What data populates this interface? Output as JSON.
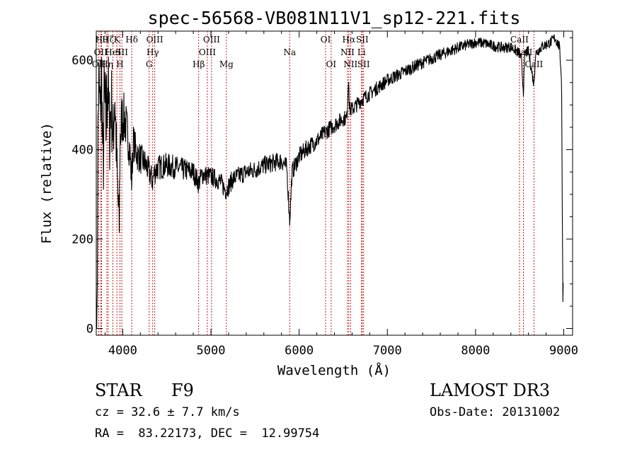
{
  "chart_data": {
    "type": "line",
    "title": "spec-56568-VB081N11V1_sp12-221.fits",
    "xlabel": "Wavelength (Å)",
    "ylabel": "Flux (relative)",
    "xlim": [
      3700,
      9100
    ],
    "ylim": [
      -15,
      665
    ],
    "grid": false,
    "x_ticks": [
      4000,
      5000,
      6000,
      7000,
      8000,
      9000
    ],
    "y_ticks": [
      0,
      200,
      400,
      600
    ],
    "x_tick_labels": [
      "4000",
      "5000",
      "6000",
      "7000",
      "8000",
      "9000"
    ],
    "y_tick_labels": [
      "0",
      "200",
      "400",
      "600"
    ],
    "series": [
      {
        "line_color": "#000000",
        "noise": [
          [
            3700,
            60
          ],
          [
            3800,
            120
          ],
          [
            3900,
            90
          ],
          [
            4000,
            60
          ],
          [
            4100,
            40
          ],
          [
            4300,
            30
          ],
          [
            5000,
            22
          ],
          [
            6000,
            20
          ],
          [
            7000,
            15
          ],
          [
            8000,
            12
          ],
          [
            9000,
            12
          ]
        ],
        "points": [
          [
            3705,
            0
          ],
          [
            3712,
            120
          ],
          [
            3718,
            430
          ],
          [
            3730,
            560
          ],
          [
            3745,
            470
          ],
          [
            3760,
            580
          ],
          [
            3778,
            330
          ],
          [
            3790,
            520
          ],
          [
            3810,
            450
          ],
          [
            3830,
            560
          ],
          [
            3850,
            440
          ],
          [
            3870,
            510
          ],
          [
            3890,
            420
          ],
          [
            3910,
            530
          ],
          [
            3935,
            350
          ],
          [
            3960,
            220
          ],
          [
            3970,
            420
          ],
          [
            3990,
            470
          ],
          [
            4020,
            470
          ],
          [
            4050,
            440
          ],
          [
            4080,
            400
          ],
          [
            4101,
            330
          ],
          [
            4120,
            420
          ],
          [
            4160,
            390
          ],
          [
            4200,
            380
          ],
          [
            4250,
            370
          ],
          [
            4300,
            350
          ],
          [
            4340,
            330
          ],
          [
            4360,
            350
          ],
          [
            4400,
            360
          ],
          [
            4500,
            365
          ],
          [
            4600,
            360
          ],
          [
            4700,
            355
          ],
          [
            4800,
            350
          ],
          [
            4861,
            325
          ],
          [
            4900,
            345
          ],
          [
            5000,
            340
          ],
          [
            5100,
            330
          ],
          [
            5170,
            308
          ],
          [
            5250,
            335
          ],
          [
            5400,
            350
          ],
          [
            5500,
            355
          ],
          [
            5600,
            365
          ],
          [
            5700,
            370
          ],
          [
            5800,
            375
          ],
          [
            5860,
            360
          ],
          [
            5893,
            240
          ],
          [
            5920,
            350
          ],
          [
            6000,
            385
          ],
          [
            6100,
            405
          ],
          [
            6200,
            420
          ],
          [
            6300,
            440
          ],
          [
            6400,
            455
          ],
          [
            6500,
            470
          ],
          [
            6540,
            470
          ],
          [
            6563,
            570
          ],
          [
            6570,
            490
          ],
          [
            6600,
            490
          ],
          [
            6700,
            510
          ],
          [
            6800,
            525
          ],
          [
            7000,
            555
          ],
          [
            7200,
            575
          ],
          [
            7400,
            595
          ],
          [
            7600,
            612
          ],
          [
            7800,
            628
          ],
          [
            8000,
            640
          ],
          [
            8100,
            638
          ],
          [
            8200,
            632
          ],
          [
            8300,
            628
          ],
          [
            8400,
            630
          ],
          [
            8498,
            615
          ],
          [
            8520,
            600
          ],
          [
            8542,
            530
          ],
          [
            8560,
            615
          ],
          [
            8600,
            620
          ],
          [
            8662,
            545
          ],
          [
            8680,
            615
          ],
          [
            8750,
            630
          ],
          [
            8850,
            640
          ],
          [
            8900,
            650
          ],
          [
            8950,
            630
          ],
          [
            8975,
            560
          ],
          [
            8985,
            200
          ],
          [
            8990,
            60
          ],
          [
            8995,
            120
          ]
        ]
      }
    ],
    "lines": [
      {
        "wavelength": 3727,
        "label": "OII",
        "row": 2
      },
      {
        "wavelength": 3750,
        "label": "OII",
        "row": 1
      },
      {
        "wavelength": 3760,
        "label": "Hθ",
        "row": 0
      },
      {
        "wavelength": 3820,
        "label": "Hη",
        "row": 2
      },
      {
        "wavelength": 3835,
        "label": "Hζ",
        "row": 0
      },
      {
        "wavelength": 3889,
        "label": "HeI",
        "row": 1
      },
      {
        "wavelength": 3934,
        "label": "K",
        "row": 0
      },
      {
        "wavelength": 3969,
        "label": "H",
        "row": 2
      },
      {
        "wavelength": 3990,
        "label": "SII",
        "row": 1
      },
      {
        "wavelength": 4102,
        "label": "Hδ",
        "row": 0
      },
      {
        "wavelength": 4300,
        "label": "G",
        "row": 2
      },
      {
        "wavelength": 4340,
        "label": "Hγ",
        "row": 1
      },
      {
        "wavelength": 4363,
        "label": "OIII",
        "row": 0
      },
      {
        "wavelength": 4861,
        "label": "Hβ",
        "row": 2
      },
      {
        "wavelength": 4959,
        "label": "OIII",
        "row": 1
      },
      {
        "wavelength": 5007,
        "label": "OIII",
        "row": 0
      },
      {
        "wavelength": 5175,
        "label": "Mg",
        "row": 2
      },
      {
        "wavelength": 5893,
        "label": "Na",
        "row": 1
      },
      {
        "wavelength": 6300,
        "label": "OI",
        "row": 0
      },
      {
        "wavelength": 6363,
        "label": "OI",
        "row": 2
      },
      {
        "wavelength": 6548,
        "label": "NII",
        "row": 1
      },
      {
        "wavelength": 6563,
        "label": "Hα",
        "row": 0
      },
      {
        "wavelength": 6583,
        "label": "NII",
        "row": 2
      },
      {
        "wavelength": 6707,
        "label": "Li",
        "row": 1
      },
      {
        "wavelength": 6716,
        "label": "SII",
        "row": 0
      },
      {
        "wavelength": 6731,
        "label": "SII",
        "row": 2
      },
      {
        "wavelength": 8498,
        "label": "CaII",
        "row": 0
      },
      {
        "wavelength": 8542,
        "label": "CaII",
        "row": 1
      },
      {
        "wavelength": 8662,
        "label": "CaII",
        "row": 2
      }
    ],
    "line_marker_color": "#cc0000"
  },
  "info": {
    "class_label": "STAR",
    "subclass_label": "F9",
    "survey_label": "LAMOST DR3",
    "cz_text": "cz = 32.6 ± 7.7 km/s",
    "obs_date_text": "Obs-Date: 20131002",
    "coords_text": "RA =  83.22173, DEC =  12.99754"
  }
}
